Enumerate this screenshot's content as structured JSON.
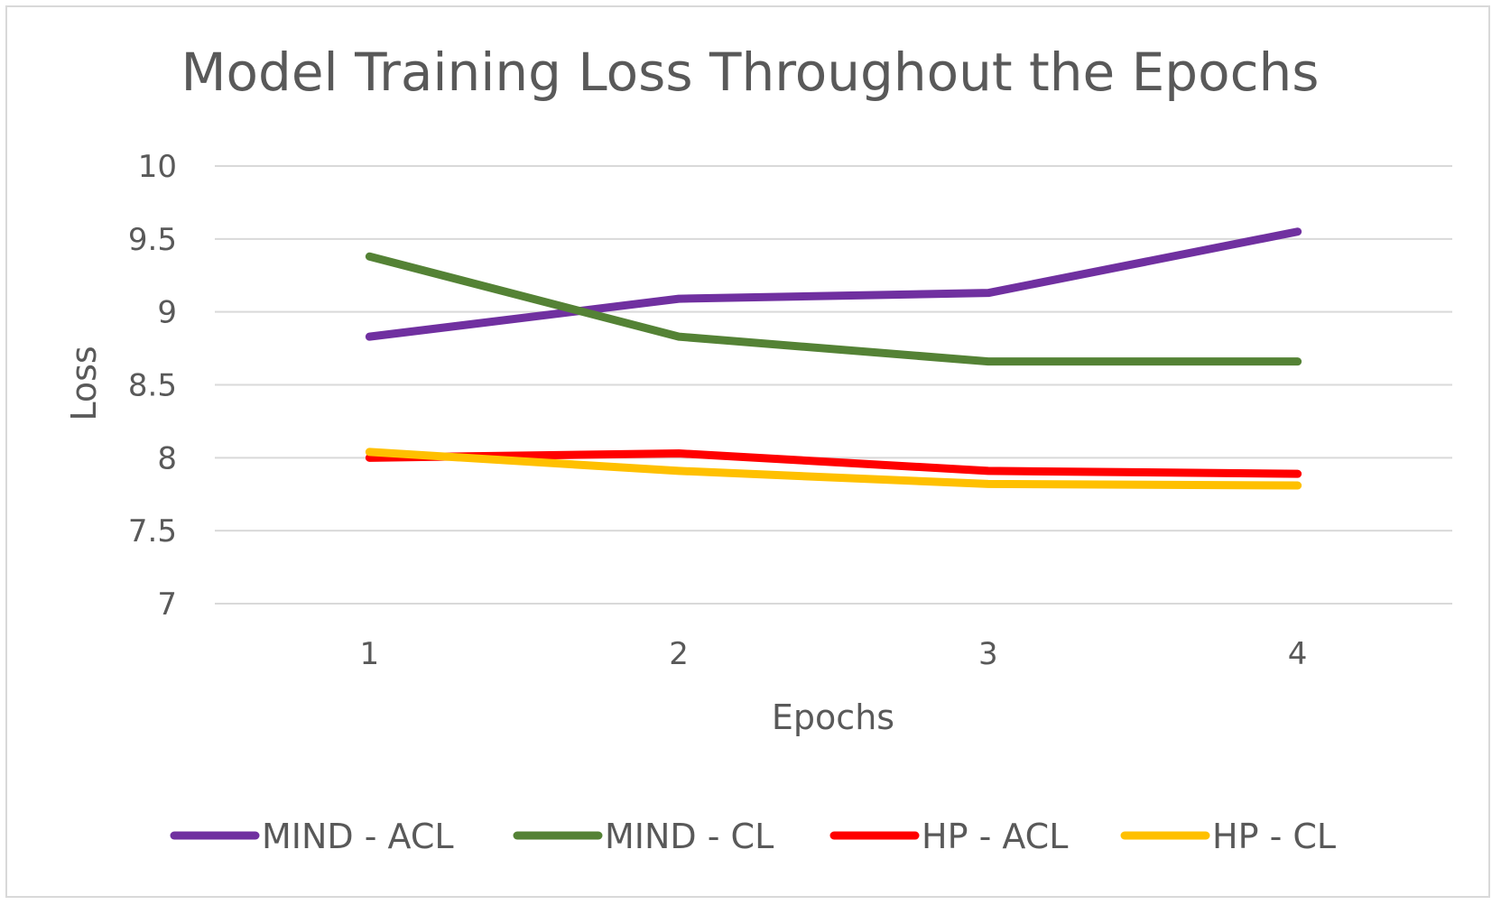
{
  "chart_data": {
    "type": "line",
    "title": "Model Training Loss Throughout the Epochs",
    "xlabel": "Epochs",
    "ylabel": "Loss",
    "x": [
      "1",
      "2",
      "3",
      "4"
    ],
    "ylim": [
      7,
      10
    ],
    "yticks": [
      "7",
      "7.5",
      "8",
      "8.5",
      "9",
      "9.5",
      "10"
    ],
    "grid": true,
    "legend_position": "bottom",
    "series": [
      {
        "name": "MIND - ACL",
        "color": "#7030a0",
        "values": [
          8.83,
          9.09,
          9.13,
          9.55
        ]
      },
      {
        "name": "MIND - CL",
        "color": "#548235",
        "values": [
          9.38,
          8.83,
          8.66,
          8.66
        ]
      },
      {
        "name": "HP - ACL",
        "color": "#ff0000",
        "values": [
          8.0,
          8.03,
          7.91,
          7.89
        ]
      },
      {
        "name": "HP - CL",
        "color": "#ffc000",
        "values": [
          8.04,
          7.91,
          7.82,
          7.81
        ]
      }
    ]
  }
}
